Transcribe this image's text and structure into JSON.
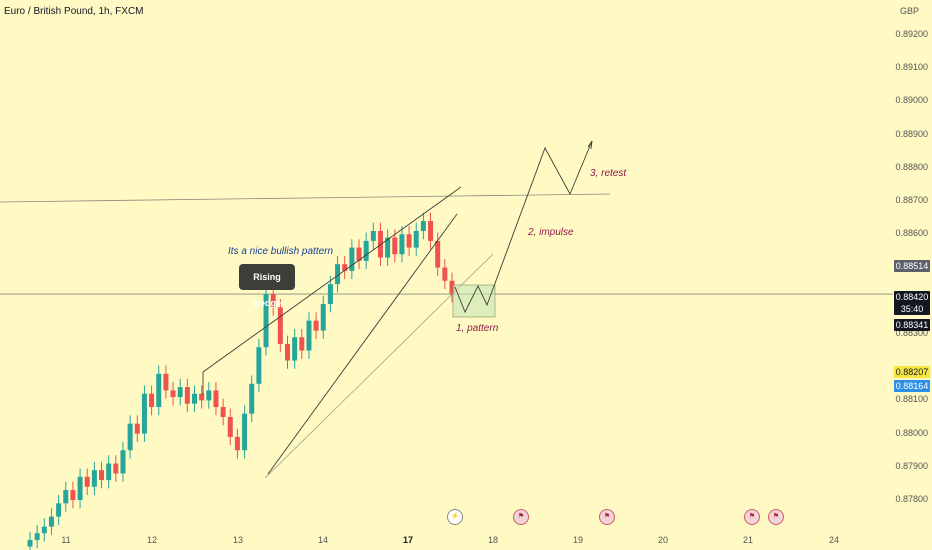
{
  "chart_data": {
    "type": "candlestick",
    "title": "Euro / British Pound, 1h, FXCM",
    "currency": "GBP",
    "y_ticks": [
      "0.89200",
      "0.89100",
      "0.89000",
      "0.88900",
      "0.88800",
      "0.88700",
      "0.88600",
      "0.88300",
      "0.88100",
      "0.88000",
      "0.87900",
      "0.87800"
    ],
    "x_ticks": [
      {
        "label": "11",
        "bold": false
      },
      {
        "label": "12",
        "bold": false
      },
      {
        "label": "13",
        "bold": false
      },
      {
        "label": "14",
        "bold": false
      },
      {
        "label": "17",
        "bold": true
      },
      {
        "label": "18",
        "bold": false
      },
      {
        "label": "19",
        "bold": false
      },
      {
        "label": "20",
        "bold": false
      },
      {
        "label": "21",
        "bold": false
      },
      {
        "label": "24",
        "bold": false
      }
    ],
    "ylim": [
      0.8777,
      0.8923
    ],
    "price_labels": {
      "level_high": "0.88514",
      "current": "0.88420",
      "countdown": "35:40",
      "level_low": "0.88341",
      "yellow": "0.88207",
      "blue": "0.88164"
    },
    "colors": {
      "up": "#26a69a",
      "down": "#ef5350",
      "background": "#fff9c4"
    },
    "close_series": [
      0.8768,
      0.877,
      0.8772,
      0.8775,
      0.8779,
      0.8783,
      0.878,
      0.8787,
      0.8784,
      0.8789,
      0.8786,
      0.8791,
      0.8788,
      0.8795,
      0.8803,
      0.88,
      0.8812,
      0.8808,
      0.8818,
      0.8813,
      0.8811,
      0.8814,
      0.8809,
      0.8812,
      0.881,
      0.8813,
      0.8808,
      0.8805,
      0.8799,
      0.8795,
      0.8806,
      0.8815,
      0.8826,
      0.8842,
      0.8838,
      0.8827,
      0.8822,
      0.8829,
      0.8825,
      0.8834,
      0.8831,
      0.8839,
      0.8845,
      0.8851,
      0.8849,
      0.8856,
      0.8852,
      0.8858,
      0.8861,
      0.8853,
      0.8859,
      0.8854,
      0.886,
      0.8856,
      0.8861,
      0.8864,
      0.8858,
      0.885,
      0.8846,
      0.8842
    ],
    "annotations": {
      "bullish": "Its a nice bullish pattern",
      "wedge": "Rising wedge",
      "pattern": "1, pattern",
      "impulse": "2, impulse",
      "retest": "3, retest"
    },
    "events": [
      "bolt",
      "flag",
      "flag",
      "flag",
      "flag"
    ],
    "events_x_hint": [
      "17",
      "18",
      "19",
      "21",
      "21"
    ]
  }
}
